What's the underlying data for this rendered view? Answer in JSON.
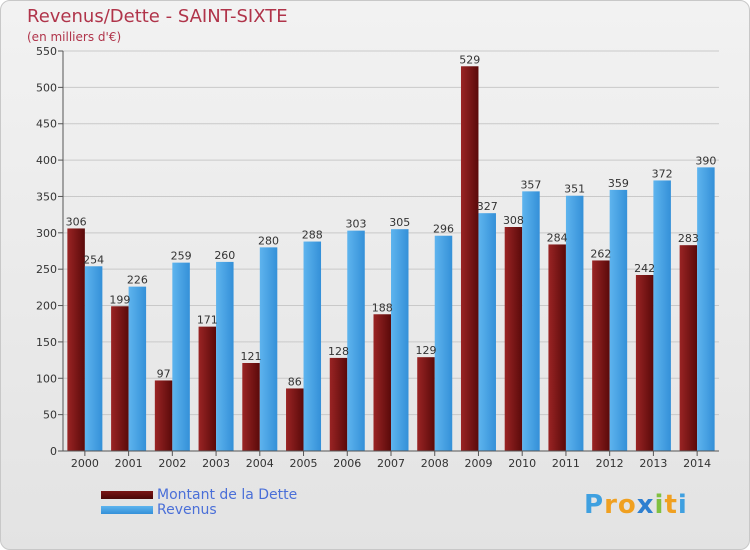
{
  "chart_data": {
    "type": "bar",
    "title": "Revenus/Dette - SAINT-SIXTE",
    "subtitle": "(en milliers d'€)",
    "categories": [
      "2000",
      "2001",
      "2002",
      "2003",
      "2004",
      "2005",
      "2006",
      "2007",
      "2008",
      "2009",
      "2010",
      "2011",
      "2012",
      "2013",
      "2014"
    ],
    "series": [
      {
        "name": "Montant de la Dette",
        "color": "#8b1a1a",
        "values": [
          306,
          199,
          97,
          171,
          121,
          86,
          128,
          188,
          129,
          529,
          308,
          284,
          262,
          242,
          283
        ]
      },
      {
        "name": "Revenus",
        "color": "#4ba3e3",
        "values": [
          254,
          226,
          259,
          260,
          280,
          288,
          303,
          305,
          296,
          327,
          357,
          351,
          359,
          372,
          390
        ]
      }
    ],
    "ylim": [
      0,
      550
    ],
    "yticks": [
      0,
      50,
      100,
      150,
      200,
      250,
      300,
      350,
      400,
      450,
      500,
      550
    ],
    "grid": true,
    "legend_position": "bottom-left"
  },
  "brand": {
    "letters": [
      "P",
      "r",
      "o",
      "x",
      "i",
      "t",
      "i"
    ],
    "colors": [
      "#3fa0e0",
      "#f0a020",
      "#f0a020",
      "#2e7fd0",
      "#80c040",
      "#f0a020",
      "#3fa0e0"
    ]
  }
}
